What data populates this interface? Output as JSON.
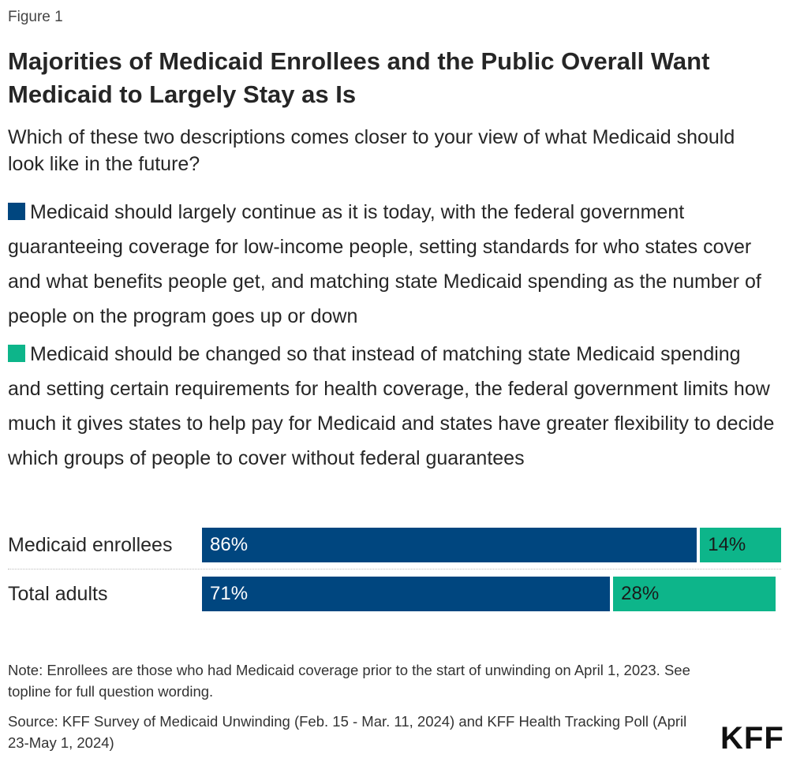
{
  "figure_label": "Figure 1",
  "title": "Majorities of Medicaid Enrollees and the Public Overall Want Medicaid to Largely Stay as Is",
  "subtitle": "Which of these two descriptions comes closer to your view of what Medicaid should look like in the future?",
  "legend": [
    {
      "label": "Medicaid should largely continue as it is today, with the federal government guaranteeing coverage for low-income people, setting standards for who states cover and what benefits people get, and matching state Medicaid spending as the number of people on the program goes up or down",
      "color": "#00467f"
    },
    {
      "label": "Medicaid should be changed so that instead of matching state Medicaid spending and setting certain requirements for health coverage, the federal government limits how much it gives states to help pay for Medicaid and states have greater flexibility to decide which groups of people to cover without federal guarantees",
      "color": "#0db58a"
    }
  ],
  "chart_data": {
    "type": "bar",
    "orientation": "horizontal",
    "stacked": true,
    "categories": [
      "Medicaid enrollees",
      "Total adults"
    ],
    "series": [
      {
        "name": "Medicaid should largely continue as it is today",
        "color": "#00467f",
        "values": [
          86,
          71
        ],
        "labels": [
          "86%",
          "71%"
        ]
      },
      {
        "name": "Medicaid should be changed",
        "color": "#0db58a",
        "values": [
          14,
          28
        ],
        "labels": [
          "14%",
          "28%"
        ]
      }
    ],
    "xlim": [
      0,
      100
    ],
    "grid": false
  },
  "note": "Note: Enrollees are those who had Medicaid coverage prior to the start of unwinding on April 1, 2023. See topline for full question wording.",
  "source": "Source: KFF Survey of Medicaid Unwinding (Feb. 15 - Mar. 11, 2024) and KFF Health Tracking Poll (April 23-May 1, 2024)",
  "logo": "KFF"
}
